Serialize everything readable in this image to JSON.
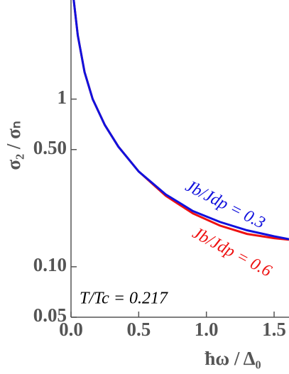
{
  "chart_data": {
    "type": "line",
    "x_label": "ħω / Δ₀",
    "y_label": "σ₂ / σₙ",
    "annotation": "T/Tc = 0.217",
    "xlim": [
      0,
      1.61
    ],
    "ylim": [
      0.05,
      3.9
    ],
    "log_y": true,
    "xticks": [
      {
        "value": 0,
        "label": "0.0"
      },
      0.5,
      {
        "value": 1,
        "label": "1.0"
      },
      1.5
    ],
    "yticks": [
      0.05,
      {
        "value": 0.1,
        "label": "0.10"
      },
      {
        "value": 0.5,
        "label": "0.50"
      },
      1
    ],
    "x": [
      0.02,
      0.05,
      0.1,
      0.16,
      0.25,
      0.35,
      0.5,
      0.7,
      0.9,
      1.1,
      1.3,
      1.5,
      1.61
    ],
    "series": [
      {
        "name": "Jb/Jdp = 0.6",
        "color": "#ee1111",
        "values": [
          3.9,
          2.4,
          1.45,
          1.0,
          0.7,
          0.52,
          0.37,
          0.265,
          0.208,
          0.176,
          0.157,
          0.148,
          0.145
        ]
      },
      {
        "name": "Jb/Jdp = 0.3",
        "color": "#1111dd",
        "values": [
          3.9,
          2.4,
          1.45,
          1.0,
          0.7,
          0.52,
          0.37,
          0.27,
          0.215,
          0.185,
          0.165,
          0.152,
          0.146
        ]
      }
    ]
  }
}
